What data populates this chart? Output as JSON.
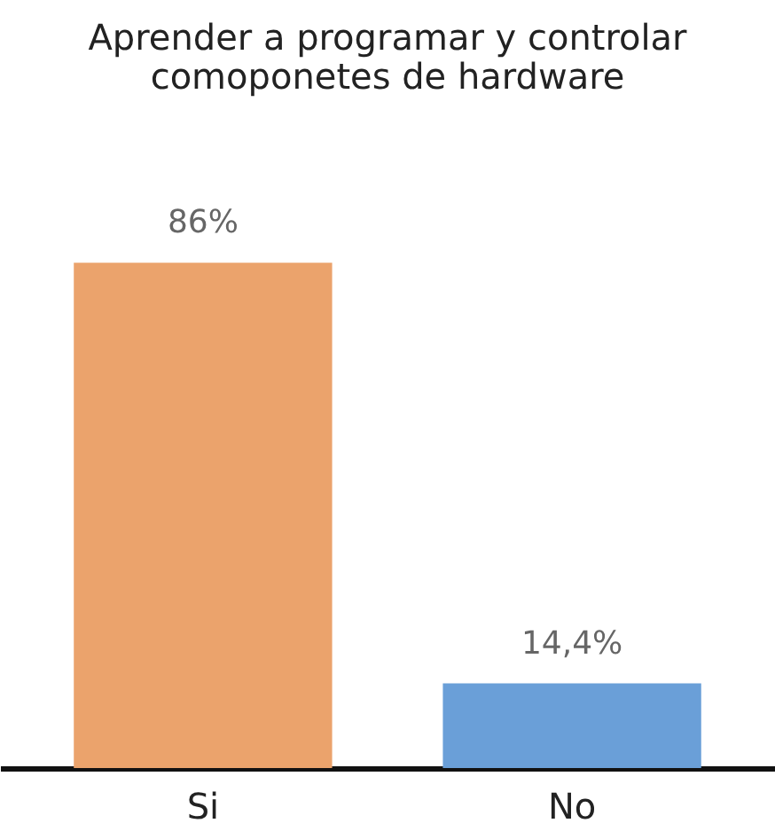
{
  "chart_data": {
    "type": "bar",
    "title": "Aprender a programar y controlar comoponetes de hardware",
    "categories": [
      "Si",
      "No"
    ],
    "values": [
      86,
      14.4
    ],
    "value_labels": [
      "86%",
      "14,4%"
    ],
    "colors": [
      "#eba36c",
      "#6a9fd8"
    ],
    "grid": false
  }
}
